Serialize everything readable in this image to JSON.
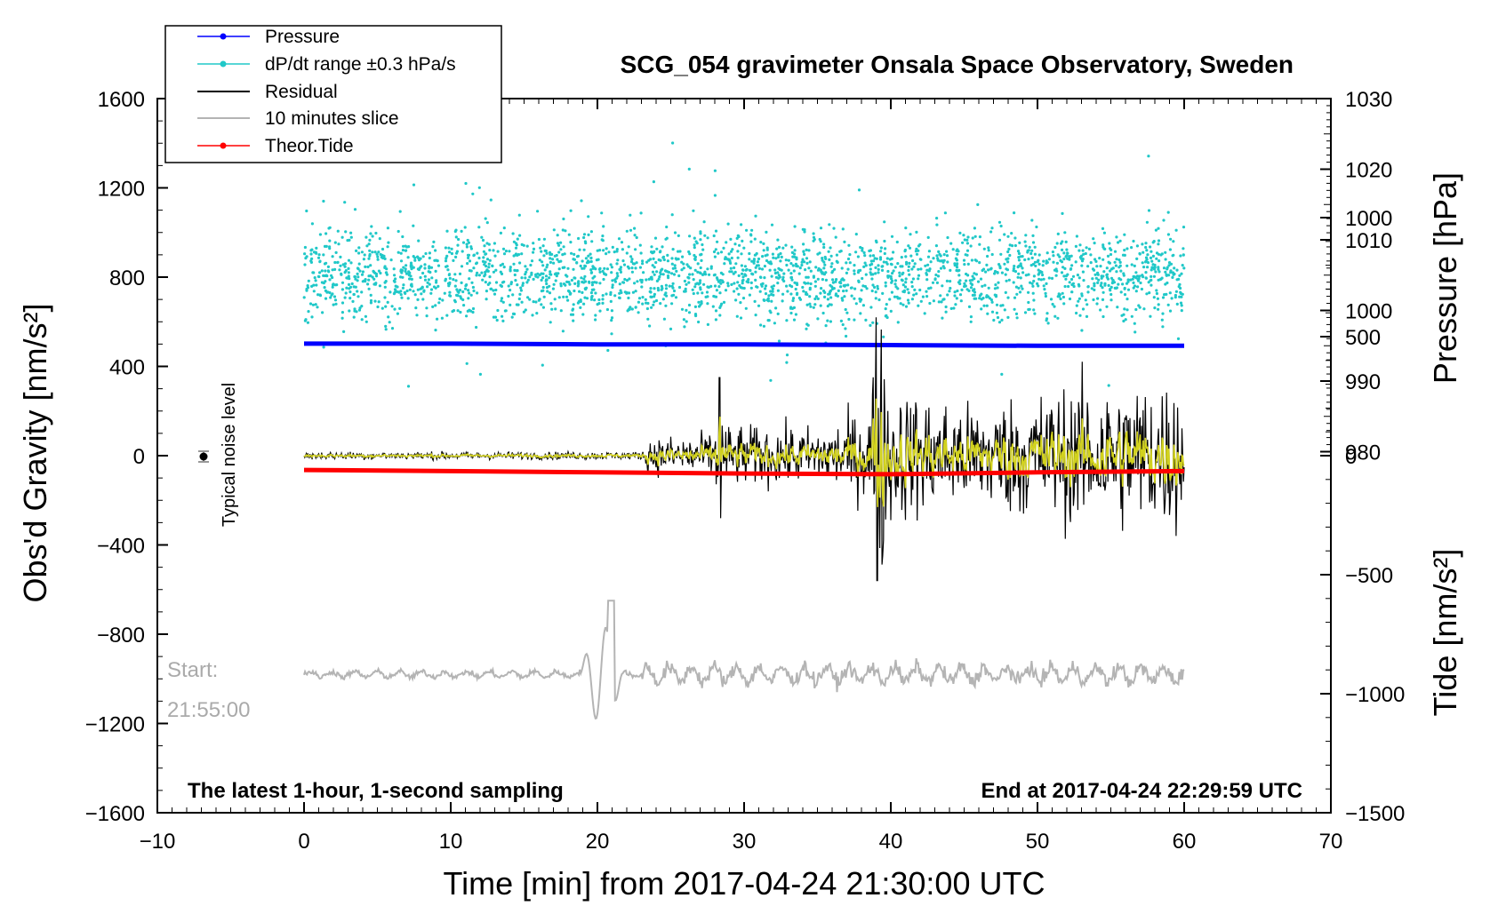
{
  "chart_data": {
    "type": "line",
    "title": "SCG_054 gravimeter Onsala Space Observatory, Sweden",
    "xlabel": "Time [min] from 2017-04-24 21:30:00 UTC",
    "ylabel_left": "Obs'd Gravity [nm/s²]",
    "ylabel_right_top": "Pressure [hPa]",
    "ylabel_right_bottom": "Tide [nm/s²]",
    "xlim": [
      -10,
      70
    ],
    "ylim": [
      -1600,
      1600
    ],
    "x_ticks": [
      "−10",
      "0",
      "10",
      "20",
      "30",
      "40",
      "50",
      "60",
      "70"
    ],
    "y_ticks": [
      "1600",
      "1200",
      "800",
      "400",
      "0",
      "−400",
      "−800",
      "−1200",
      "−1600"
    ],
    "pressure_axis": {
      "range": [
        970,
        1030
      ],
      "ticks": [
        "1030",
        "1020",
        "1010",
        "1000",
        "990",
        "980"
      ]
    },
    "tide_axis": {
      "range": [
        -1500,
        1500
      ],
      "ticks": [
        "1000",
        "500",
        "0",
        "−500",
        "−1000",
        "−1500"
      ]
    },
    "legend": {
      "position": "top-left",
      "entries": [
        {
          "label": "Pressure",
          "color": "#0000ff"
        },
        {
          "label": "dP/dt range ±0.3 hPa/s",
          "color": "#20c8c8"
        },
        {
          "label": "Residual",
          "color": "#000000"
        },
        {
          "label": "10 minutes slice",
          "color": "#b4b4b4"
        },
        {
          "label": "Theor.Tide",
          "color": "#ff0000"
        }
      ]
    },
    "annotations": {
      "noise_label": "Typical noise level",
      "noise_marker": {
        "x": -7,
        "y": 0,
        "err": 20
      },
      "start_label": "Start:",
      "start_time": "21:55:00",
      "bottom_left": "The latest 1-hour, 1-second sampling",
      "bottom_right": "End at 2017-04-24 22:29:59 UTC"
    },
    "series": [
      {
        "name": "Pressure",
        "axis": "pressure_hPa",
        "color": "#0000ff",
        "x": [
          0,
          10,
          20,
          30,
          40,
          50,
          60
        ],
        "values": [
          995.3,
          995.3,
          995.2,
          995.2,
          995.1,
          995.0,
          995.0
        ]
      },
      {
        "name": "dP/dt range",
        "axis": "left_nm_s2",
        "color": "#20c8c8",
        "scatter_center": 810,
        "scatter_spread": 100
      },
      {
        "name": "Residual",
        "axis": "left_nm_s2",
        "color": "#000000",
        "envelope": [
          [
            0,
            15
          ],
          [
            23,
            15
          ],
          [
            23.5,
            70
          ],
          [
            28,
            90
          ],
          [
            28.3,
            350
          ],
          [
            28.6,
            120
          ],
          [
            35,
            110
          ],
          [
            38.5,
            180
          ],
          [
            39.1,
            600
          ],
          [
            40,
            270
          ],
          [
            45,
            200
          ],
          [
            53,
            280
          ],
          [
            60,
            300
          ]
        ]
      },
      {
        "name": "10 minutes slice",
        "axis": "left_nm_s2",
        "color": "#b4b4b4",
        "offset": -980
      },
      {
        "name": "Theor.Tide",
        "axis": "tide_nm_s2",
        "color": "#ff0000",
        "x": [
          0,
          10,
          20,
          30,
          40,
          50,
          60
        ],
        "values": [
          -60,
          -65,
          -70,
          -75,
          -78,
          -70,
          -65
        ]
      }
    ]
  }
}
